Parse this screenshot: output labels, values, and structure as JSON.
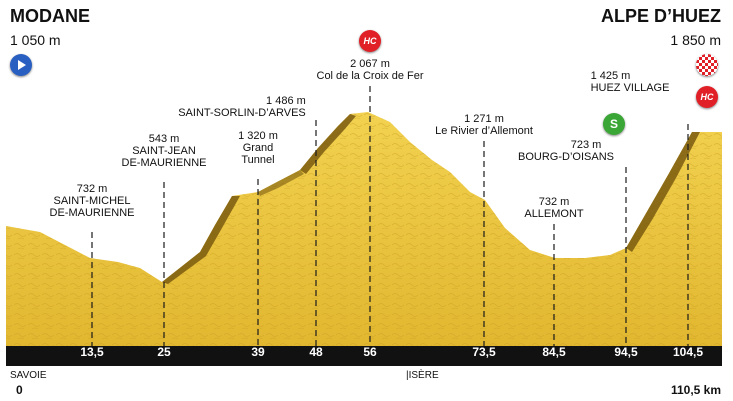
{
  "start": {
    "name": "MODANE",
    "altitude": "1 050 m",
    "km_label": "0",
    "region": "SAVOIE",
    "icon": "start-arrow-icon"
  },
  "finish": {
    "name": "ALPE D’HUEZ",
    "altitude": "1 850 m",
    "km_label": "110,5 km",
    "icons": [
      "finish-flag-icon",
      "hc-climb-icon"
    ]
  },
  "region_change": {
    "label": "ISÈRE"
  },
  "km_marks": [
    "13,5",
    "25",
    "39",
    "48",
    "56",
    "73,5",
    "84,5",
    "94,5",
    "104,5"
  ],
  "points": [
    {
      "altitude": "732 m",
      "name_lines": [
        "SAINT-MICHEL",
        "DE-MAURIENNE"
      ],
      "km": 13.5
    },
    {
      "altitude": "543 m",
      "name_lines": [
        "SAINT-JEAN",
        "DE-MAURIENNE"
      ],
      "km": 25
    },
    {
      "altitude": "1 320 m",
      "name_lines": [
        "Grand",
        "Tunnel"
      ],
      "km": 39
    },
    {
      "altitude": "1 486 m",
      "name_lines": [
        "SAINT-SORLIN-D’ARVES"
      ],
      "km": 48
    },
    {
      "altitude": "2 067 m",
      "name_lines": [
        "Col de la Croix de Fer"
      ],
      "km": 56,
      "badge": "HC"
    },
    {
      "altitude": "1 271 m",
      "name_lines": [
        "Le Rivier d’Allemont"
      ],
      "km": 73.5
    },
    {
      "altitude": "732 m",
      "name_lines": [
        "ALLEMONT"
      ],
      "km": 84.5
    },
    {
      "altitude": "723 m",
      "name_lines": [
        "BOURG-D’OISANS"
      ],
      "km": 94.5,
      "badge": "S"
    },
    {
      "altitude": "1 425 m",
      "name_lines": [
        "HUEZ VILLAGE"
      ],
      "km": 104.5
    }
  ],
  "badges": {
    "hc": "HC",
    "sprint": "S"
  },
  "colors": {
    "terrain": "#e9c43a",
    "terrain_dark": "#8a6d16",
    "bar": "#111111",
    "hc": "#e01f26",
    "sprint": "#3aa635",
    "start": "#2a5fc2"
  }
}
